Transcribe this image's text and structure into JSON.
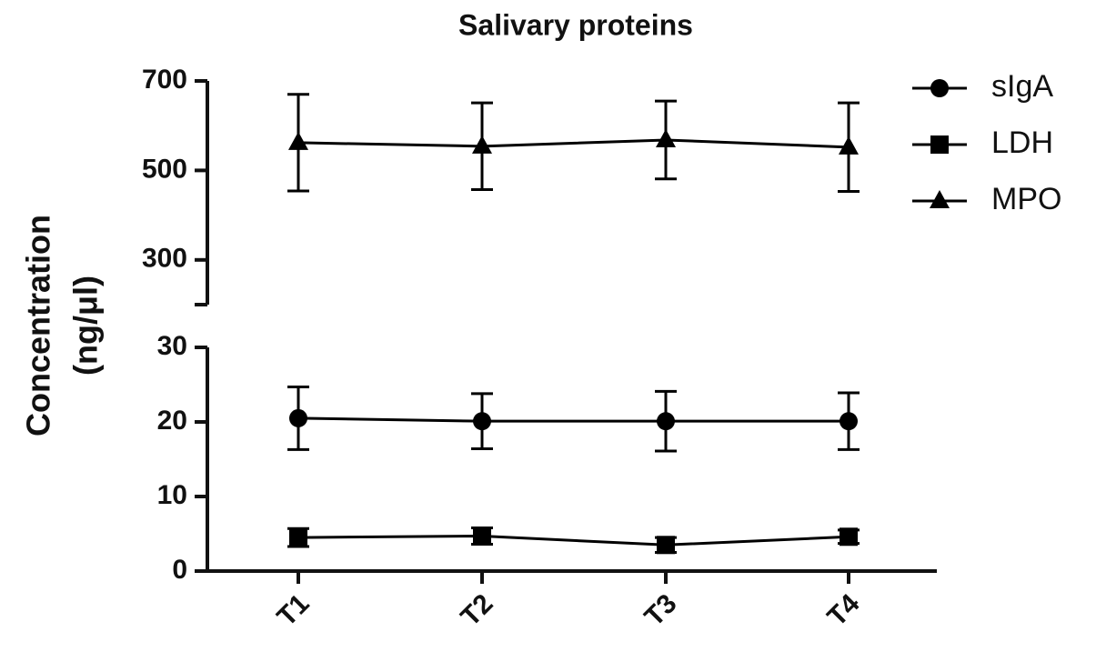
{
  "chart_data": [
    {
      "type": "line",
      "title": "Salivary proteins",
      "ylabel": [
        "Concentration",
        "(ng/μl)"
      ],
      "ylim": [
        200,
        700
      ],
      "yticks": [
        300,
        500,
        700
      ],
      "series": [
        {
          "name": "MPO",
          "color": "#000000",
          "marker": "triangle",
          "values": [
            562,
            554,
            568,
            552
          ],
          "errors": [
            108,
            97,
            87,
            99
          ]
        }
      ]
    },
    {
      "type": "line",
      "categories": [
        "T1",
        "T2",
        "T3",
        "T4"
      ],
      "ylim": [
        0,
        30
      ],
      "yticks": [
        0,
        10,
        20,
        30
      ],
      "series": [
        {
          "name": "sIgA",
          "color": "#000000",
          "marker": "circle",
          "values": [
            20.5,
            20.1,
            20.1,
            20.1
          ],
          "errors": [
            4.2,
            3.7,
            4.0,
            3.8
          ]
        },
        {
          "name": "LDH",
          "color": "#000000",
          "marker": "square",
          "values": [
            4.5,
            4.7,
            3.5,
            4.6
          ],
          "errors": [
            1.2,
            1.1,
            1.0,
            0.9
          ]
        }
      ]
    }
  ]
}
